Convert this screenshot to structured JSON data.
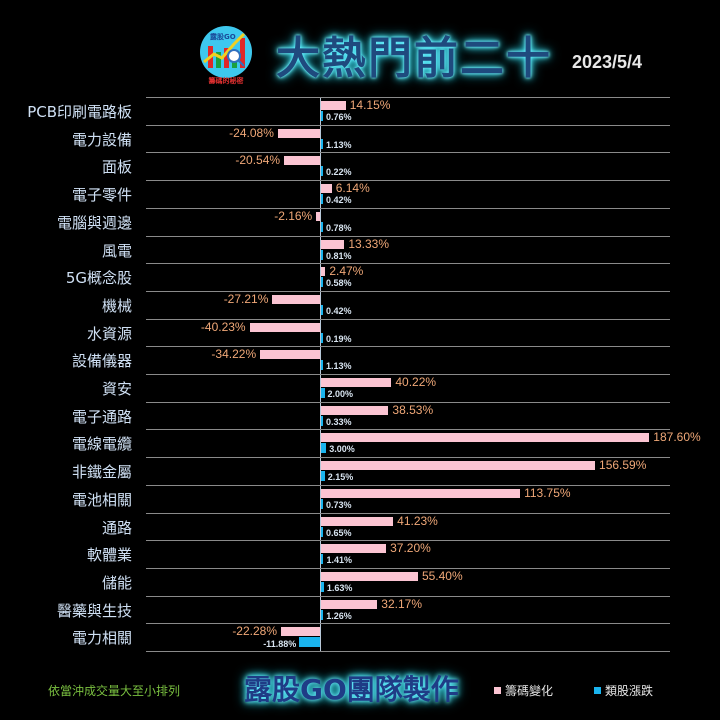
{
  "header": {
    "title": "大熱門前二十",
    "date": "2023/5/4",
    "logo_brand": "露股GO",
    "logo_caption": "籌碼的秘密"
  },
  "footer": {
    "note": "依當沖成交量大至小排列",
    "brand": "露股GO團隊製作"
  },
  "legend": [
    {
      "label": "籌碼變化",
      "color": "#fbc4d2"
    },
    {
      "label": "類股漲跌",
      "color": "#1ab4ee"
    }
  ],
  "colors": {
    "chip_change": "#fbc4d2",
    "sector_change": "#1ab4ee",
    "chip_label": "#f0a878",
    "category_text": "#cfe0f4",
    "background": "#000000"
  },
  "chart_data": {
    "type": "bar",
    "orientation": "horizontal",
    "title": "大熱門前二十",
    "subtitle": "2023/5/4",
    "xlabel": "",
    "ylabel": "",
    "categories": [
      "PCB印刷電路板",
      "電力設備",
      "面板",
      "電子零件",
      "電腦與週邊",
      "風電",
      "5G概念股",
      "機械",
      "水資源",
      "設備儀器",
      "資安",
      "電子通路",
      "電線電纜",
      "非鐵金屬",
      "電池相關",
      "通路",
      "軟體業",
      "儲能",
      "醫藥與生技",
      "電力相關"
    ],
    "series": [
      {
        "name": "籌碼變化",
        "color": "#fbc4d2",
        "values": [
          14.15,
          -24.08,
          -20.54,
          6.14,
          -2.16,
          13.33,
          2.47,
          -27.21,
          -40.23,
          -34.22,
          40.22,
          38.53,
          187.6,
          156.59,
          113.75,
          41.23,
          37.2,
          55.4,
          32.17,
          -22.28
        ]
      },
      {
        "name": "類股漲跌",
        "color": "#1ab4ee",
        "values": [
          0.76,
          1.13,
          0.22,
          0.42,
          0.78,
          0.81,
          0.58,
          0.42,
          0.19,
          1.13,
          2.0,
          0.33,
          3.0,
          2.15,
          0.73,
          0.65,
          1.41,
          1.63,
          1.26,
          -11.88
        ]
      }
    ],
    "labels_pink": [
      "14.15%",
      "-24.08%",
      "-20.54%",
      "6.14%",
      "-2.16%",
      "13.33%",
      "2.47%",
      "-27.21%",
      "-40.23%",
      "-34.22%",
      "40.22%",
      "38.53%",
      "187.60%",
      "156.59%",
      "113.75%",
      "41.23%",
      "37.20%",
      "55.40%",
      "32.17%",
      "-22.28%"
    ],
    "labels_blue": [
      "0.76%",
      "1.13%",
      "0.22%",
      "0.42%",
      "0.78%",
      "0.81%",
      "0.58%",
      "0.42%",
      "0.19%",
      "1.13%",
      "2.00%",
      "0.33%",
      "3.00%",
      "2.15%",
      "0.73%",
      "0.65%",
      "1.41%",
      "1.63%",
      "1.26%",
      "-11.88%"
    ],
    "sort_note": "依當沖成交量大至小排列",
    "grid": true,
    "legend_position": "bottom-right"
  }
}
